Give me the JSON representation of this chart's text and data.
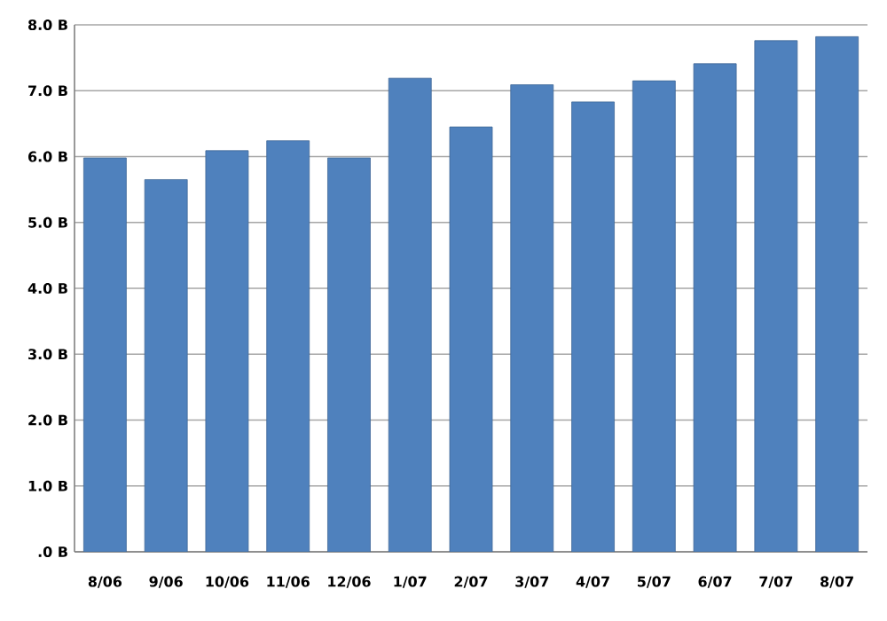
{
  "chart_data": {
    "type": "bar",
    "categories": [
      "8/06",
      "9/06",
      "10/06",
      "11/06",
      "12/06",
      "1/07",
      "2/07",
      "3/07",
      "4/07",
      "5/07",
      "6/07",
      "7/07",
      "8/07"
    ],
    "values": [
      5.98,
      5.65,
      6.09,
      6.24,
      5.98,
      7.19,
      6.45,
      7.09,
      6.83,
      7.15,
      7.41,
      7.76,
      7.82
    ],
    "color": "#4f81bd",
    "ylim": [
      0,
      8
    ],
    "yticks": [
      {
        "value": 0,
        "label": ".0 B"
      },
      {
        "value": 1,
        "label": "1.0 B"
      },
      {
        "value": 2,
        "label": "2.0 B"
      },
      {
        "value": 3,
        "label": "3.0 B"
      },
      {
        "value": 4,
        "label": "4.0 B"
      },
      {
        "value": 5,
        "label": "5.0 B"
      },
      {
        "value": 6,
        "label": "6.0 B"
      },
      {
        "value": 7,
        "label": "7.0 B"
      },
      {
        "value": 8,
        "label": "8.0 B"
      }
    ],
    "grid": "y"
  }
}
